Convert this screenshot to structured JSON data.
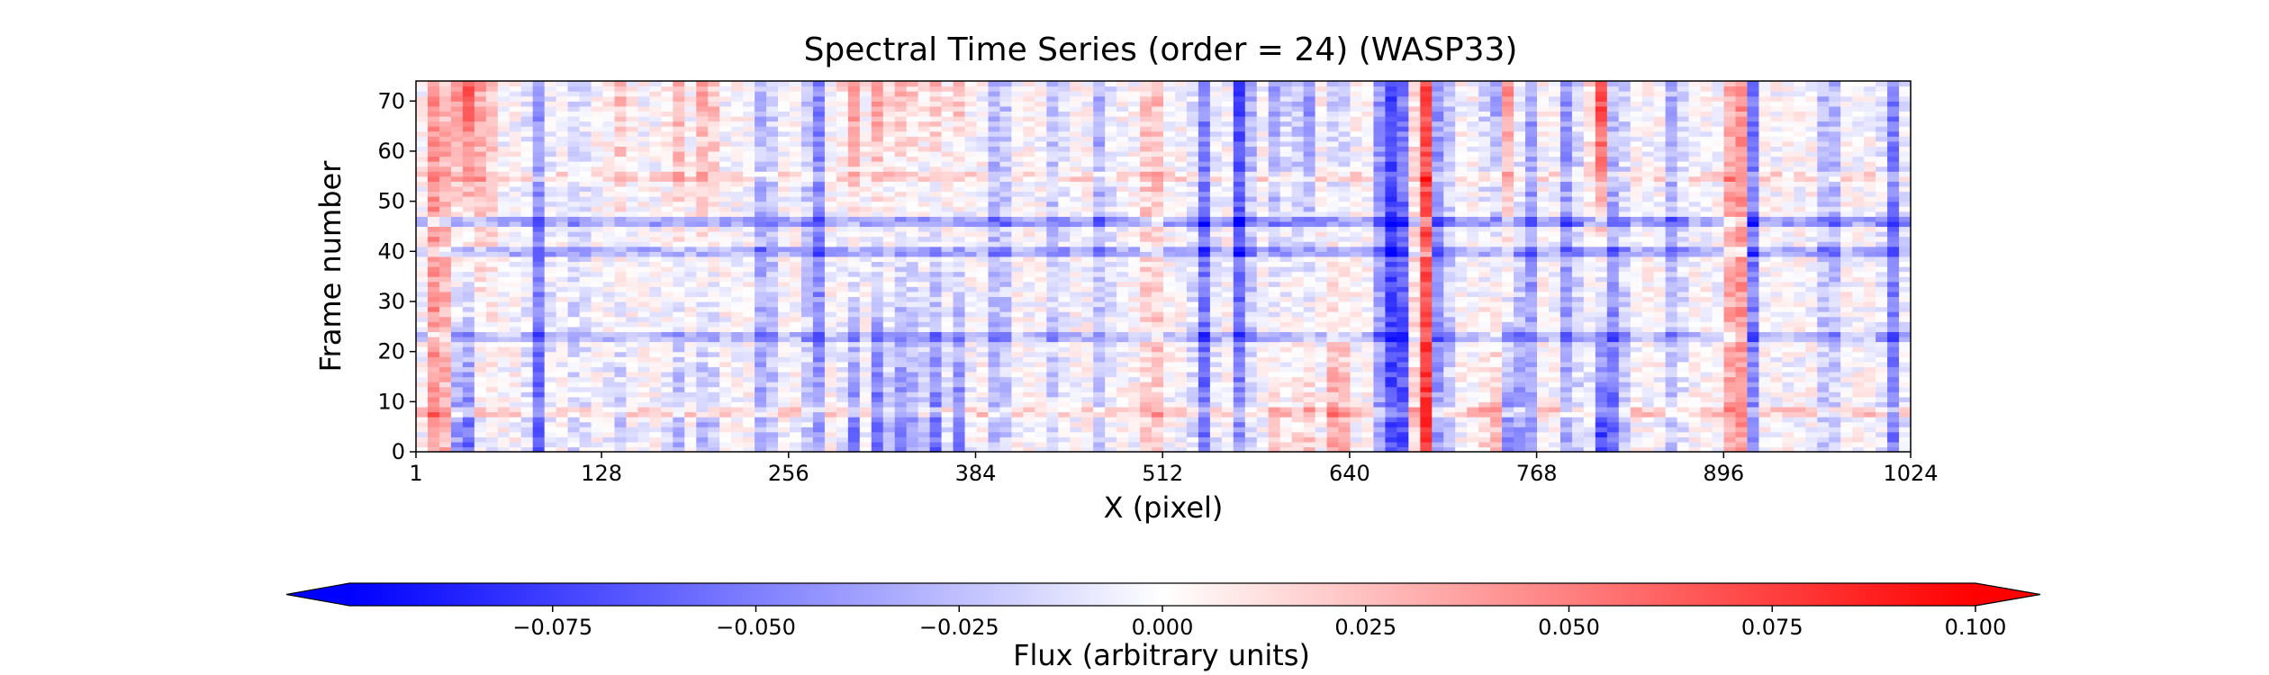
{
  "chart_data": {
    "type": "heatmap",
    "title": "Spectral Time Series (order = 24) (WASP33)",
    "xlabel": "X (pixel)",
    "ylabel": "Frame number",
    "xlim": [
      1,
      1024
    ],
    "ylim": [
      0,
      74
    ],
    "x_ticks": [
      1,
      128,
      256,
      384,
      512,
      640,
      768,
      896,
      1024
    ],
    "y_ticks": [
      0,
      10,
      20,
      30,
      40,
      50,
      60,
      70
    ],
    "n_frames": 74,
    "n_pixels": 1024,
    "grid": false,
    "colormap": "bwr",
    "colorbar": {
      "label": "Flux (arbitrary units)",
      "orientation": "horizontal",
      "placement": "bottom",
      "vmin": -0.1,
      "vmax": 0.1,
      "extend": "both",
      "ticks": [
        -0.075,
        -0.05,
        -0.025,
        0.0,
        0.025,
        0.05,
        0.075,
        0.1
      ],
      "tick_labels": [
        "−0.075",
        "−0.050",
        "−0.025",
        "0.000",
        "0.025",
        "0.050",
        "0.075",
        "0.100"
      ]
    },
    "colors": {
      "low": "#0000ff",
      "mid": "#ffffff",
      "high": "#ff0000"
    },
    "column_features": [
      {
        "x": 16,
        "early": 0.06,
        "late": 0.06
      },
      {
        "x": 34,
        "early": -0.09,
        "late": 0.09
      },
      {
        "x": 48,
        "early": -0.01,
        "late": 0.05
      },
      {
        "x": 85,
        "early": -0.06,
        "late": -0.04
      },
      {
        "x": 112,
        "early": -0.02,
        "late": -0.02
      },
      {
        "x": 140,
        "early": -0.03,
        "late": 0.03
      },
      {
        "x": 180,
        "early": -0.04,
        "late": 0.04
      },
      {
        "x": 200,
        "early": -0.05,
        "late": 0.05
      },
      {
        "x": 240,
        "early": -0.05,
        "late": -0.04
      },
      {
        "x": 275,
        "early": -0.05,
        "late": -0.06
      },
      {
        "x": 300,
        "early": -0.06,
        "late": 0.05
      },
      {
        "x": 318,
        "early": -0.08,
        "late": 0.05
      },
      {
        "x": 336,
        "early": -0.08,
        "late": 0.04
      },
      {
        "x": 355,
        "early": -0.07,
        "late": 0.03
      },
      {
        "x": 372,
        "early": -0.06,
        "late": 0.03
      },
      {
        "x": 400,
        "early": -0.04,
        "late": -0.04
      },
      {
        "x": 438,
        "early": -0.02,
        "late": -0.03
      },
      {
        "x": 470,
        "early": -0.02,
        "late": -0.04
      },
      {
        "x": 505,
        "early": 0.03,
        "late": 0.04
      },
      {
        "x": 540,
        "early": -0.06,
        "late": -0.05
      },
      {
        "x": 566,
        "early": -0.05,
        "late": -0.09
      },
      {
        "x": 590,
        "early": 0.02,
        "late": -0.05
      },
      {
        "x": 610,
        "early": 0.03,
        "late": -0.06
      },
      {
        "x": 632,
        "early": 0.06,
        "late": -0.04
      },
      {
        "x": 665,
        "early": -0.07,
        "late": -0.08
      },
      {
        "x": 675,
        "early": -0.08,
        "late": -0.06
      },
      {
        "x": 692,
        "early": 0.08,
        "late": 0.07
      },
      {
        "x": 702,
        "early": -0.06,
        "late": -0.06
      },
      {
        "x": 738,
        "early": 0.04,
        "late": -0.05
      },
      {
        "x": 750,
        "early": -0.06,
        "late": 0.06
      },
      {
        "x": 762,
        "early": -0.05,
        "late": -0.05
      },
      {
        "x": 790,
        "early": -0.04,
        "late": -0.05
      },
      {
        "x": 812,
        "early": -0.08,
        "late": 0.08
      },
      {
        "x": 822,
        "early": -0.06,
        "late": -0.04
      },
      {
        "x": 862,
        "early": -0.03,
        "late": -0.04
      },
      {
        "x": 906,
        "early": 0.08,
        "late": 0.09
      },
      {
        "x": 914,
        "early": -0.06,
        "late": -0.07
      },
      {
        "x": 968,
        "early": -0.03,
        "late": -0.05
      },
      {
        "x": 1012,
        "early": -0.05,
        "late": -0.05
      }
    ],
    "row_features": [
      {
        "y": 8,
        "delta": 0.02
      },
      {
        "y": 23,
        "delta": -0.025
      },
      {
        "y": 40,
        "delta": -0.03
      },
      {
        "y": 46,
        "delta": -0.035
      },
      {
        "y": 55,
        "delta": 0.015
      }
    ]
  }
}
